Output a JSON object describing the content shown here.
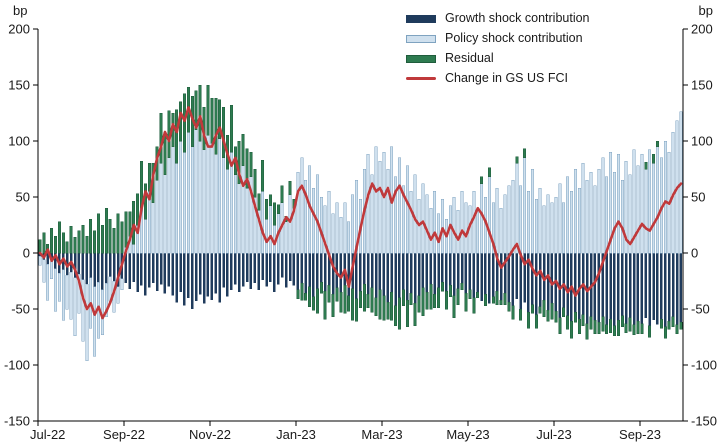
{
  "chart_data": {
    "type": "bar",
    "subtype": "stacked-bar-with-line",
    "title": "",
    "unit": "bp",
    "ylim": [
      -150,
      200
    ],
    "yticks": [
      -150,
      -100,
      -50,
      0,
      50,
      100,
      150,
      200
    ],
    "grid": false,
    "legend_position": "top-center",
    "x_frequency": "daily (sampled), Jul-2022 to Sep-2023",
    "x_tick_indices": [
      0,
      22,
      44,
      66,
      88,
      110,
      132,
      154
    ],
    "x_tick_labels": [
      "Jul-22",
      "Sep-22",
      "Nov-22",
      "Jan-23",
      "Mar-23",
      "May-23",
      "Jul-23",
      "Sep-23"
    ],
    "axis_color": "#000000",
    "series": [
      {
        "name": "Growth shock contribution",
        "type": "bar",
        "color": "#1f3b5c",
        "border": "#48false",
        "values": [
          -3,
          -6,
          -10,
          -8,
          -14,
          -18,
          -15,
          -20,
          -17,
          -22,
          -19,
          -24,
          -28,
          -22,
          -30,
          -26,
          -33,
          -27,
          -21,
          -25,
          -30,
          -23,
          -27,
          -32,
          -26,
          -35,
          -29,
          -38,
          -31,
          -27,
          -34,
          -28,
          -36,
          -30,
          -38,
          -44,
          -35,
          -47,
          -40,
          -50,
          -43,
          -37,
          -45,
          -39,
          -42,
          -36,
          -44,
          -31,
          -39,
          -33,
          -28,
          -35,
          -30,
          -26,
          -32,
          -27,
          -33,
          -24,
          -30,
          -26,
          -35,
          -28,
          -22,
          -31,
          -25,
          -29,
          -33,
          -27,
          -36,
          -30,
          -39,
          -32,
          -26,
          -34,
          -29,
          -37,
          -31,
          -35,
          -29,
          -38,
          -32,
          -41,
          -34,
          -28,
          -37,
          -31,
          -40,
          -33,
          -38,
          -44,
          -35,
          -47,
          -40,
          -33,
          -42,
          -36,
          -45,
          -38,
          -31,
          -35,
          -28,
          -37,
          -31,
          -26,
          -34,
          -29,
          -38,
          -32,
          -27,
          -36,
          -33,
          -40,
          -35,
          -43,
          -37,
          -45,
          -39,
          -34,
          -42,
          -36,
          -44,
          -47,
          -41,
          -50,
          -44,
          -53,
          -46,
          -55,
          -48,
          -42,
          -51,
          -45,
          -52,
          -58,
          -49,
          -56,
          -61,
          -53,
          -59,
          -55,
          -63,
          -57,
          -60,
          -62,
          -57,
          -64,
          -59,
          -65,
          -60,
          -56,
          -63,
          -58,
          -64,
          -61,
          -63,
          -58,
          -65,
          -60,
          -64,
          -59,
          -66,
          -61,
          -57,
          -64,
          -62
        ]
      },
      {
        "name": "Policy shock contribution",
        "type": "bar",
        "color": "#cfe0ee",
        "border": "#7fa3c0",
        "values": [
          -8,
          -20,
          -32,
          -15,
          -38,
          -25,
          -45,
          -30,
          -42,
          -52,
          -35,
          -55,
          -68,
          -45,
          -62,
          -50,
          -40,
          -30,
          -22,
          -28,
          -15,
          -10,
          5,
          15,
          8,
          25,
          40,
          30,
          55,
          45,
          65,
          80,
          70,
          85,
          95,
          80,
          100,
          90,
          108,
          95,
          110,
          100,
          92,
          105,
          98,
          88,
          102,
          85,
          75,
          90,
          70,
          62,
          78,
          58,
          68,
          50,
          38,
          55,
          30,
          42,
          25,
          35,
          45,
          28,
          52,
          40,
          72,
          85,
          65,
          78,
          58,
          70,
          50,
          42,
          55,
          35,
          45,
          32,
          45,
          28,
          52,
          65,
          48,
          75,
          88,
          70,
          95,
          82,
          90,
          75,
          95,
          68,
          85,
          60,
          78,
          55,
          70,
          48,
          62,
          52,
          40,
          55,
          35,
          48,
          30,
          42,
          50,
          38,
          55,
          45,
          42,
          55,
          38,
          62,
          50,
          68,
          45,
          58,
          40,
          52,
          60,
          65,
          80,
          60,
          85,
          55,
          75,
          48,
          58,
          42,
          52,
          45,
          50,
          62,
          45,
          68,
          55,
          75,
          58,
          80,
          65,
          72,
          60,
          75,
          85,
          68,
          90,
          72,
          88,
          65,
          82,
          70,
          92,
          78,
          88,
          75,
          92,
          80,
          95,
          85,
          100,
          90,
          108,
          118,
          126
        ]
      },
      {
        "name": "Residual",
        "type": "bar",
        "color": "#2e7b50",
        "border": "#1f5c3c",
        "values": [
          12,
          18,
          8,
          22,
          15,
          28,
          18,
          10,
          24,
          14,
          20,
          25,
          15,
          30,
          20,
          35,
          25,
          40,
          30,
          22,
          35,
          28,
          32,
          22,
          38,
          28,
          42,
          32,
          25,
          35,
          30,
          45,
          38,
          42,
          30,
          48,
          35,
          52,
          40,
          45,
          35,
          50,
          38,
          45,
          40,
          50,
          35,
          45,
          30,
          42,
          25,
          38,
          28,
          35,
          22,
          25,
          15,
          28,
          18,
          10,
          20,
          8,
          15,
          5,
          12,
          8,
          -8,
          -15,
          -6,
          -18,
          -12,
          -22,
          -10,
          -25,
          -15,
          -20,
          -12,
          -18,
          -25,
          -14,
          -28,
          -20,
          -15,
          -24,
          -12,
          -22,
          -16,
          -26,
          -22,
          -15,
          -25,
          -18,
          -28,
          -14,
          -24,
          -10,
          -20,
          -15,
          -25,
          -15,
          -22,
          -12,
          -18,
          -8,
          -16,
          -10,
          -20,
          -14,
          -6,
          -16,
          -8,
          -14,
          -5,
          6,
          -10,
          8,
          -6,
          -12,
          -4,
          -10,
          -8,
          -12,
          6,
          -10,
          8,
          -14,
          -8,
          -12,
          -6,
          -15,
          -10,
          -14,
          -10,
          -14,
          -8,
          -12,
          -15,
          -9,
          -13,
          -10,
          -14,
          -11,
          -12,
          -10,
          -13,
          -8,
          -12,
          -9,
          -14,
          -10,
          -8,
          -12,
          -9,
          -11,
          -9,
          6,
          -10,
          8,
          5,
          -8,
          -10,
          -7,
          -9,
          -8,
          -6
        ]
      },
      {
        "name": "Change in GS US FCI",
        "type": "line",
        "color": "#c0393b",
        "values": [
          0,
          -4,
          3,
          -7,
          -2,
          -10,
          -5,
          -12,
          -8,
          -15,
          -25,
          -40,
          -50,
          -45,
          -55,
          -48,
          -58,
          -52,
          -44,
          -34,
          -22,
          -10,
          2,
          12,
          25,
          18,
          40,
          55,
          48,
          70,
          85,
          95,
          108,
          100,
          115,
          108,
          125,
          118,
          130,
          120,
          112,
          122,
          105,
          95,
          95,
          105,
          112,
          100,
          88,
          78,
          85,
          70,
          60,
          66,
          55,
          42,
          30,
          18,
          10,
          15,
          8,
          18,
          25,
          32,
          28,
          38,
          55,
          60,
          52,
          42,
          35,
          28,
          18,
          8,
          -2,
          -12,
          -18,
          -22,
          -15,
          -30,
          -12,
          5,
          22,
          38,
          52,
          62,
          55,
          58,
          50,
          58,
          45,
          55,
          60,
          52,
          45,
          38,
          30,
          25,
          28,
          20,
          12,
          18,
          10,
          22,
          15,
          25,
          18,
          12,
          20,
          15,
          25,
          32,
          40,
          35,
          28,
          18,
          8,
          -5,
          -13,
          -8,
          -3,
          3,
          8,
          -2,
          -10,
          -6,
          -14,
          -20,
          -16,
          -24,
          -20,
          -28,
          -25,
          -32,
          -28,
          -35,
          -30,
          -38,
          -32,
          -28,
          -34,
          -30,
          -26,
          -18,
          -8,
          2,
          12,
          22,
          28,
          22,
          12,
          8,
          14,
          20,
          26,
          22,
          20,
          26,
          32,
          40,
          46,
          44,
          52,
          58,
          62
        ]
      }
    ]
  }
}
